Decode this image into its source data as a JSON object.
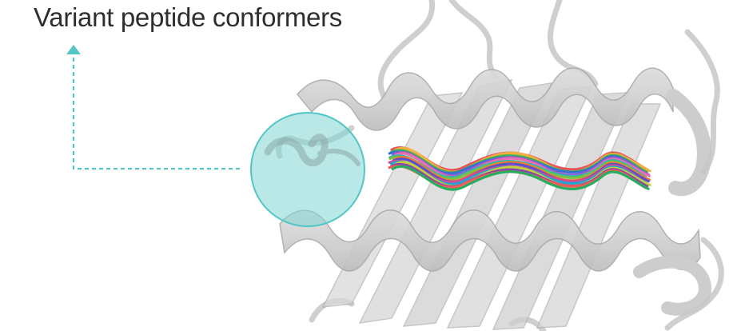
{
  "title": "Variant peptide conformers",
  "colors": {
    "callout": "#52c6c4",
    "callout_fill": "#7fd6d4",
    "protein": "#c9c9c9",
    "protein_edge": "#a9a9a9",
    "title": "#2e2e2e"
  },
  "peptide_strand_colors": [
    "#e8505b",
    "#f3b23a",
    "#3fae5a",
    "#3b6fd8",
    "#9b59d0",
    "#e86fb5",
    "#2cb7b0",
    "#7ac143",
    "#f07a32",
    "#5c4fc9",
    "#d94b8c",
    "#22a3d6",
    "#c0d33a",
    "#8e44ad",
    "#f25c54",
    "#27ae60"
  ]
}
